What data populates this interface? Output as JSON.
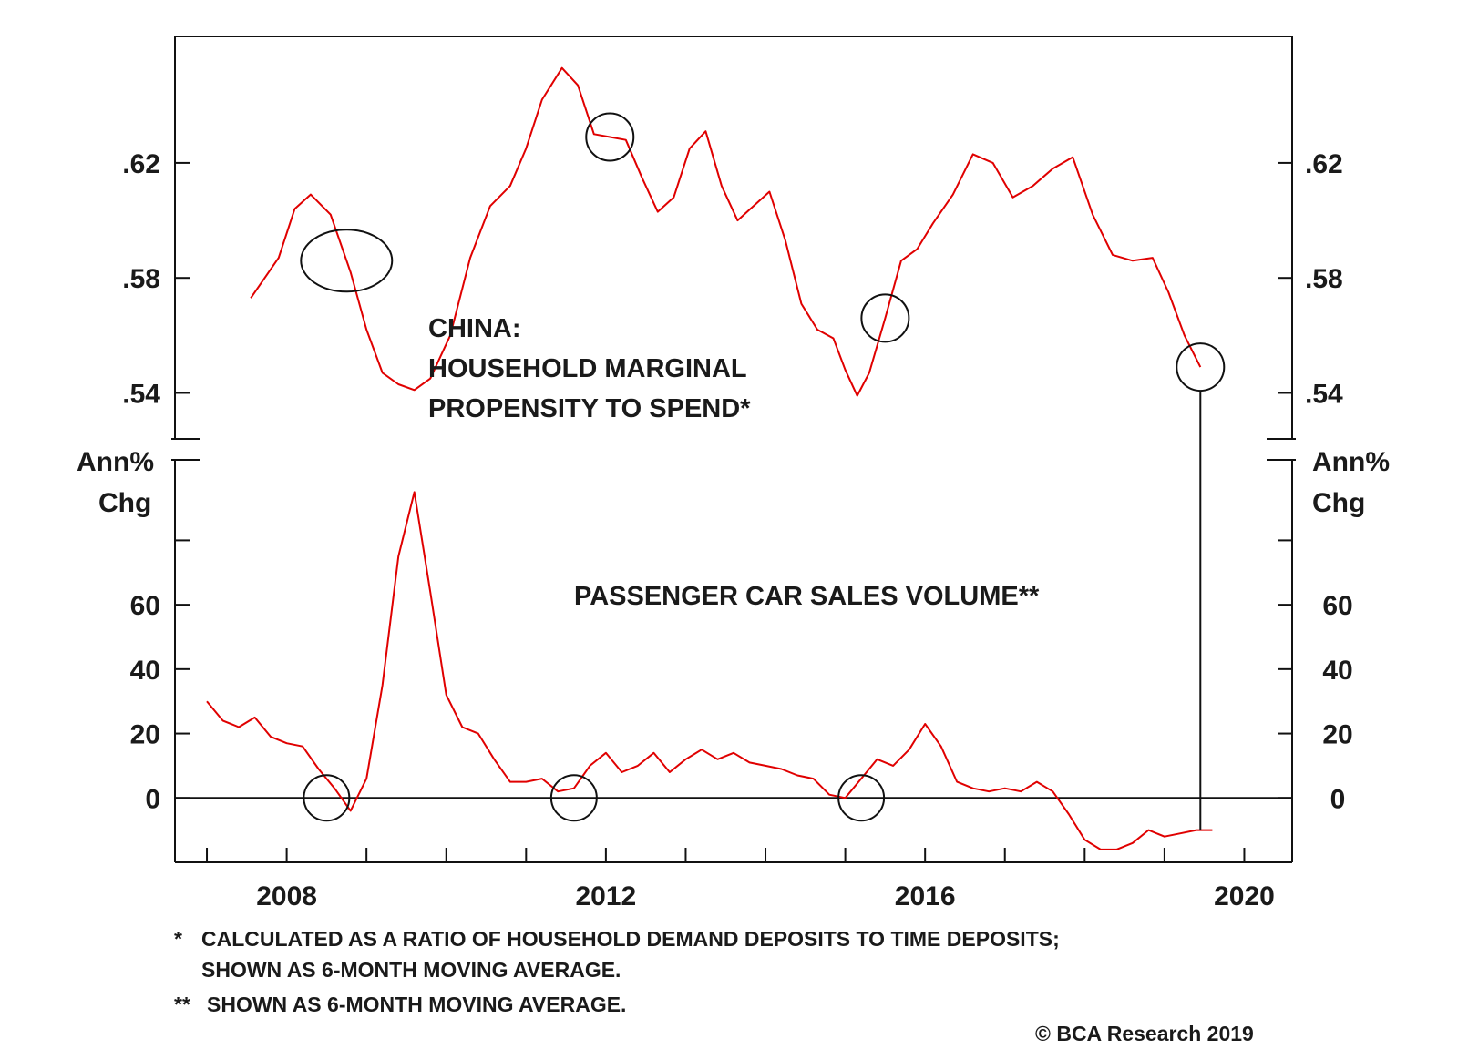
{
  "chart_data": [
    {
      "type": "line",
      "panel": "top",
      "series": [
        {
          "color": "#e00000",
          "x": [
            2007.55,
            2007.9,
            2008.1,
            2008.3,
            2008.55,
            2008.8,
            2009.0,
            2009.2,
            2009.4,
            2009.6,
            2009.8,
            2010.05,
            2010.3,
            2010.55,
            2010.8,
            2011.0,
            2011.2,
            2011.45,
            2011.65,
            2011.85,
            2012.05,
            2012.25,
            2012.45,
            2012.65,
            2012.85,
            2013.05,
            2013.25,
            2013.45,
            2013.65,
            2013.85,
            2014.05,
            2014.25,
            2014.45,
            2014.65,
            2014.85,
            2015.0,
            2015.15,
            2015.3,
            2015.5,
            2015.7,
            2015.9,
            2016.1,
            2016.35,
            2016.6,
            2016.85,
            2017.1,
            2017.35,
            2017.6,
            2017.85,
            2018.1,
            2018.35,
            2018.6,
            2018.85,
            2019.05,
            2019.25,
            2019.45
          ],
          "y": [
            0.573,
            0.587,
            0.604,
            0.609,
            0.602,
            0.582,
            0.562,
            0.547,
            0.543,
            0.541,
            0.545,
            0.56,
            0.587,
            0.605,
            0.612,
            0.625,
            0.642,
            0.653,
            0.647,
            0.63,
            0.629,
            0.628,
            0.615,
            0.603,
            0.608,
            0.625,
            0.631,
            0.612,
            0.6,
            0.605,
            0.61,
            0.593,
            0.571,
            0.562,
            0.559,
            0.548,
            0.539,
            0.547,
            0.566,
            0.586,
            0.59,
            0.599,
            0.609,
            0.623,
            0.62,
            0.608,
            0.612,
            0.618,
            0.622,
            0.602,
            0.588,
            0.586,
            0.587,
            0.575,
            0.56,
            0.549
          ]
        }
      ],
      "ylim": [
        0.524,
        0.664
      ],
      "y_ticks": [
        ".62",
        ".58",
        ".54"
      ],
      "y_tick_values": [
        0.62,
        0.58,
        0.54
      ],
      "annotation": [
        "CHINA:",
        "HOUSEHOLD MARGINAL",
        "PROPENSITY TO SPEND*"
      ],
      "circles_at_x": [
        2008.75,
        2012.05,
        2015.5,
        2019.45
      ]
    },
    {
      "type": "line",
      "panel": "bottom",
      "ylabel": [
        "Ann%",
        "Chg"
      ],
      "series": [
        {
          "color": "#e00000",
          "x": [
            2007.0,
            2007.2,
            2007.4,
            2007.6,
            2007.8,
            2008.0,
            2008.2,
            2008.4,
            2008.6,
            2008.8,
            2009.0,
            2009.2,
            2009.4,
            2009.6,
            2009.8,
            2010.0,
            2010.2,
            2010.4,
            2010.6,
            2010.8,
            2011.0,
            2011.2,
            2011.4,
            2011.6,
            2011.8,
            2012.0,
            2012.2,
            2012.4,
            2012.6,
            2012.8,
            2013.0,
            2013.2,
            2013.4,
            2013.6,
            2013.8,
            2014.0,
            2014.2,
            2014.4,
            2014.6,
            2014.8,
            2015.0,
            2015.2,
            2015.4,
            2015.6,
            2015.8,
            2016.0,
            2016.2,
            2016.4,
            2016.6,
            2016.8,
            2017.0,
            2017.2,
            2017.4,
            2017.6,
            2017.8,
            2018.0,
            2018.2,
            2018.4,
            2018.6,
            2018.8,
            2019.0,
            2019.2,
            2019.4,
            2019.6
          ],
          "y": [
            30,
            24,
            22,
            25,
            19,
            17,
            16,
            9,
            3,
            -4,
            6,
            35,
            75,
            95,
            64,
            32,
            22,
            20,
            12,
            5,
            5,
            6,
            2,
            3,
            10,
            14,
            8,
            10,
            14,
            8,
            12,
            15,
            12,
            14,
            11,
            10,
            9,
            7,
            6,
            1,
            0,
            6,
            12,
            10,
            15,
            23,
            16,
            5,
            3,
            2,
            3,
            2,
            5,
            2,
            -5,
            -13,
            -16,
            -16,
            -14,
            -10,
            -12,
            -11,
            -10,
            -10
          ]
        }
      ],
      "ylim": [
        -20,
        105
      ],
      "y_ticks": [
        "60",
        "40",
        "20",
        "0"
      ],
      "y_tick_values": [
        60,
        40,
        20,
        0
      ],
      "annotation": "PASSENGER CAR SALES VOLUME**",
      "circles_at_x": [
        2008.5,
        2011.6,
        2015.2
      ],
      "x_ticks": [
        "2008",
        "2012",
        "2016",
        "2020"
      ],
      "x_tick_values": [
        2008,
        2012,
        2016,
        2020
      ],
      "xlim": [
        2006.6,
        2020.6
      ]
    }
  ],
  "footnotes": {
    "note1_marker": "*",
    "note1_line1": "CALCULATED AS A RATIO OF HOUSEHOLD DEMAND DEPOSITS TO TIME DEPOSITS;",
    "note1_line2": "SHOWN AS 6-MONTH MOVING AVERAGE.",
    "note2_marker": "**",
    "note2_line1": "SHOWN AS 6-MONTH MOVING AVERAGE.",
    "credit": "© BCA Research 2019"
  }
}
